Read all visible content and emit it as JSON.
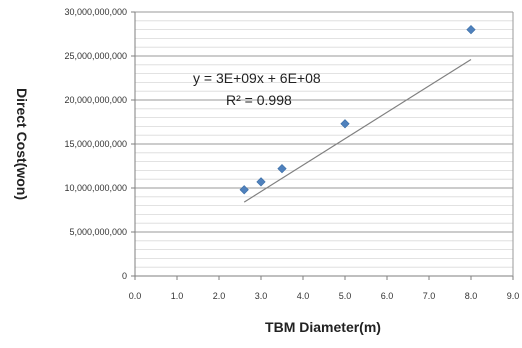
{
  "chart_data": {
    "type": "scatter",
    "xlabel": "TBM Diameter(m)",
    "ylabel": "Direct Cost(won)",
    "xlim": [
      0.0,
      9.0
    ],
    "ylim": [
      0,
      30000000000
    ],
    "x_ticks": [
      "0.0",
      "1.0",
      "2.0",
      "3.0",
      "4.0",
      "5.0",
      "6.0",
      "7.0",
      "8.0",
      "9.0"
    ],
    "y_ticks": [
      "0",
      "5,000,000,000",
      "10,000,000,000",
      "15,000,000,000",
      "20,000,000,000",
      "25,000,000,000",
      "30,000,000,000"
    ],
    "grid": true,
    "series": [
      {
        "points": [
          {
            "x": 2.6,
            "y": 9800000000
          },
          {
            "x": 3.0,
            "y": 10700000000
          },
          {
            "x": 3.5,
            "y": 12200000000
          },
          {
            "x": 5.0,
            "y": 17300000000
          },
          {
            "x": 8.0,
            "y": 28000000000
          }
        ],
        "color": "#4F81BD"
      }
    ],
    "trendline": {
      "type": "linear",
      "slope": 3000000000,
      "intercept": 600000000,
      "x_range": [
        2.6,
        8.0
      ],
      "color": "#808080",
      "equation_label": "y = 3E+09x + 6E+08",
      "r2_label": "R² = 0.998"
    }
  }
}
